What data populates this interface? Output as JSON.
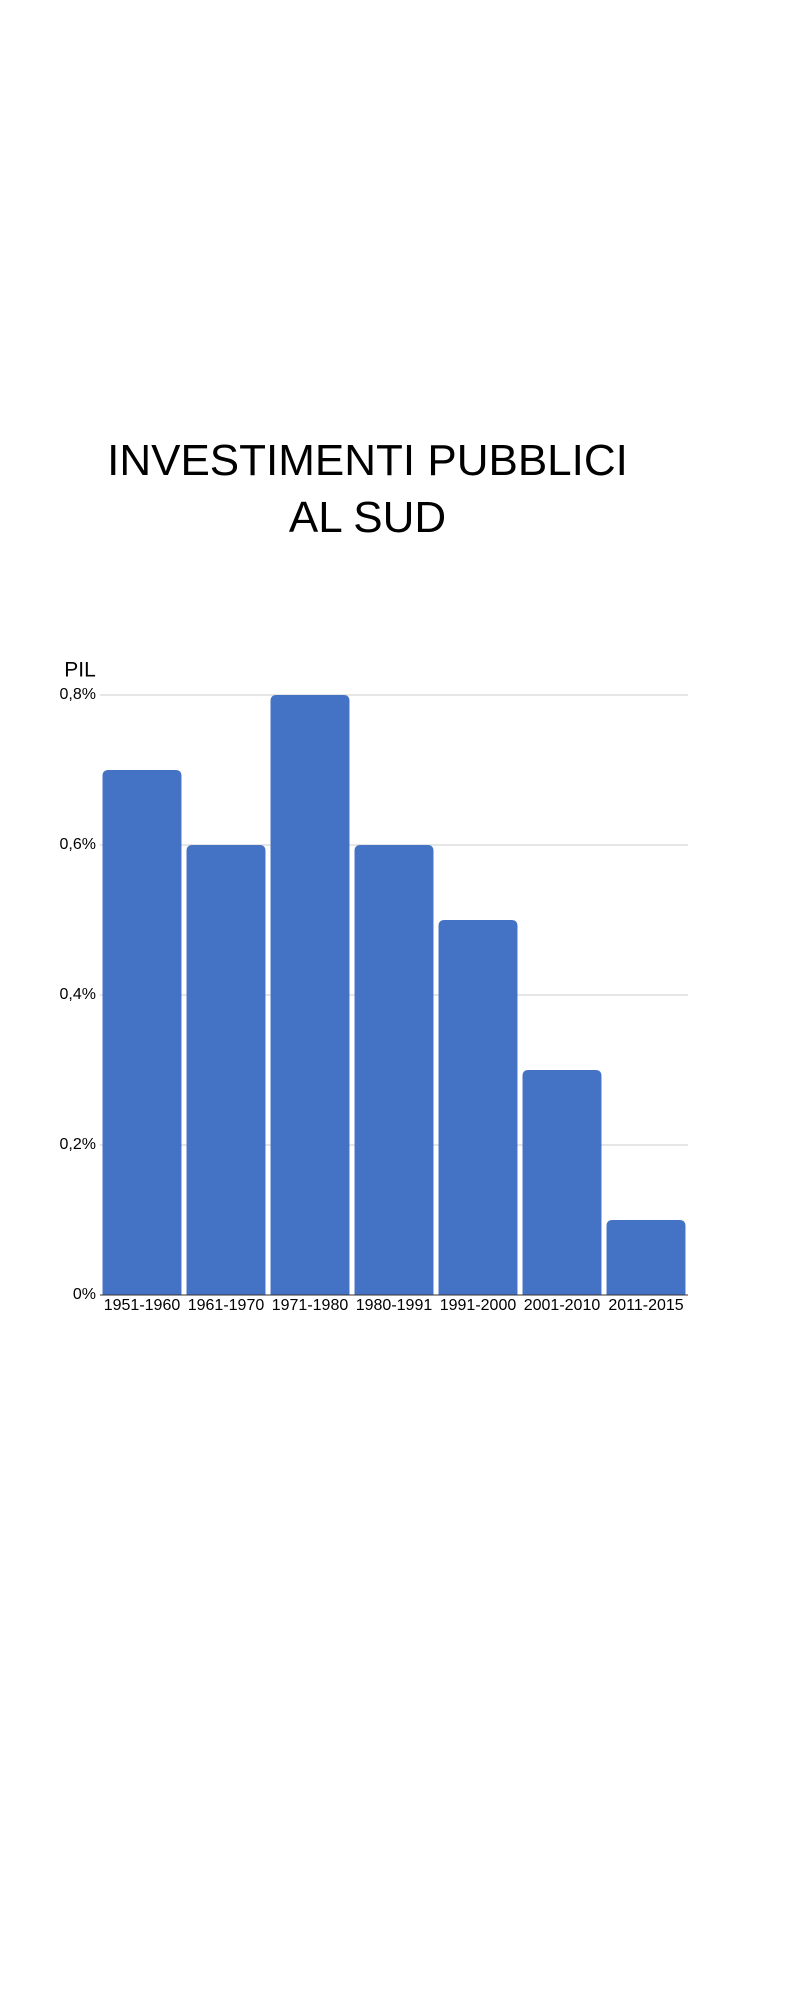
{
  "chart_data": {
    "type": "bar",
    "title": "INVESTIMENTI PUBBLICI AL SUD",
    "y_label": "PIL",
    "categories": [
      "1951-1960",
      "1961-1970",
      "1971-1980",
      "1980-1991",
      "1991-2000",
      "2001-2010",
      "2011-2015"
    ],
    "values": [
      0.7,
      0.6,
      0.8,
      0.6,
      0.5,
      0.3,
      0.1
    ],
    "color": "#4472c4",
    "ylim": [
      0,
      0.8
    ],
    "yticks": [
      {
        "value": 0,
        "label": "0%"
      },
      {
        "value": 0.2,
        "label": "0,2%"
      },
      {
        "value": 0.4,
        "label": "0,4%"
      },
      {
        "value": 0.6,
        "label": "0,6%"
      },
      {
        "value": 0.8,
        "label": "0,8%"
      }
    ],
    "grid": true
  }
}
